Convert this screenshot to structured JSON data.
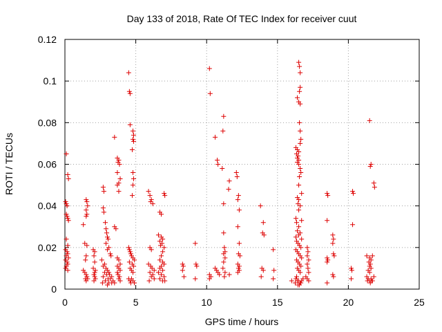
{
  "chart_data": {
    "type": "scatter",
    "title": "Day 133 of 2018, Rate Of TEC Index for receiver cuut",
    "xlabel": "GPS time / hours",
    "ylabel": "ROTI / TECUs",
    "xlim": [
      0,
      25
    ],
    "ylim": [
      0,
      0.12
    ],
    "x_ticks": [
      0,
      5,
      10,
      15,
      20,
      25
    ],
    "x_tick_labels": [
      "0",
      "5",
      "10",
      "15",
      "20",
      "25"
    ],
    "y_ticks": [
      0,
      0.02,
      0.04,
      0.06,
      0.08,
      0.1,
      0.12
    ],
    "y_tick_labels": [
      "0",
      "0.02",
      "0.04",
      "0.06",
      "0.08",
      "0.1",
      "0.12"
    ],
    "grid": true,
    "marker": "+",
    "color": "#dd0000",
    "points": [
      [
        0.1,
        0.065
      ],
      [
        0.2,
        0.055
      ],
      [
        0.25,
        0.053
      ],
      [
        0.05,
        0.042
      ],
      [
        0.1,
        0.041
      ],
      [
        0.15,
        0.04
      ],
      [
        0.1,
        0.036
      ],
      [
        0.15,
        0.035
      ],
      [
        0.2,
        0.034
      ],
      [
        0.25,
        0.033
      ],
      [
        0.1,
        0.024
      ],
      [
        0.2,
        0.021
      ],
      [
        0.05,
        0.019
      ],
      [
        0.15,
        0.018
      ],
      [
        0.2,
        0.017
      ],
      [
        0.1,
        0.016
      ],
      [
        0.25,
        0.015
      ],
      [
        0.05,
        0.014
      ],
      [
        0.15,
        0.013
      ],
      [
        0.2,
        0.012
      ],
      [
        0.1,
        0.011
      ],
      [
        0.05,
        0.01
      ],
      [
        0.2,
        0.009
      ],
      [
        1.3,
        0.031
      ],
      [
        1.5,
        0.043
      ],
      [
        1.55,
        0.042
      ],
      [
        1.6,
        0.04
      ],
      [
        1.5,
        0.038
      ],
      [
        1.55,
        0.036
      ],
      [
        1.5,
        0.035
      ],
      [
        1.4,
        0.022
      ],
      [
        1.55,
        0.021
      ],
      [
        1.5,
        0.016
      ],
      [
        1.45,
        0.014
      ],
      [
        1.3,
        0.009
      ],
      [
        1.4,
        0.008
      ],
      [
        1.5,
        0.007
      ],
      [
        1.55,
        0.006
      ],
      [
        1.45,
        0.005
      ],
      [
        1.6,
        0.005
      ],
      [
        1.5,
        0.004
      ],
      [
        2.0,
        0.019
      ],
      [
        2.1,
        0.018
      ],
      [
        2.05,
        0.016
      ],
      [
        2.1,
        0.013
      ],
      [
        2.0,
        0.01
      ],
      [
        2.15,
        0.009
      ],
      [
        2.1,
        0.008
      ],
      [
        2.05,
        0.007
      ],
      [
        2.1,
        0.006
      ],
      [
        2.15,
        0.005
      ],
      [
        2.05,
        0.004
      ],
      [
        2.7,
        0.049
      ],
      [
        2.75,
        0.047
      ],
      [
        2.7,
        0.039
      ],
      [
        2.75,
        0.037
      ],
      [
        2.85,
        0.032
      ],
      [
        2.9,
        0.029
      ],
      [
        2.95,
        0.027
      ],
      [
        3.0,
        0.025
      ],
      [
        3.05,
        0.024
      ],
      [
        2.9,
        0.022
      ],
      [
        3.1,
        0.02
      ],
      [
        3.0,
        0.019
      ],
      [
        3.2,
        0.017
      ],
      [
        3.25,
        0.016
      ],
      [
        2.6,
        0.014
      ],
      [
        2.8,
        0.012
      ],
      [
        2.7,
        0.011
      ],
      [
        2.9,
        0.01
      ],
      [
        3.0,
        0.009
      ],
      [
        3.1,
        0.008
      ],
      [
        2.8,
        0.008
      ],
      [
        2.95,
        0.007
      ],
      [
        3.15,
        0.007
      ],
      [
        3.3,
        0.006
      ],
      [
        2.7,
        0.006
      ],
      [
        3.05,
        0.005
      ],
      [
        3.2,
        0.005
      ],
      [
        3.4,
        0.004
      ],
      [
        2.85,
        0.004
      ],
      [
        3.1,
        0.003
      ],
      [
        3.3,
        0.003
      ],
      [
        3.5,
        0.003
      ],
      [
        2.65,
        0.003
      ],
      [
        3.0,
        0.002
      ],
      [
        3.5,
        0.073
      ],
      [
        3.7,
        0.063
      ],
      [
        3.8,
        0.062
      ],
      [
        3.75,
        0.061
      ],
      [
        3.85,
        0.06
      ],
      [
        3.7,
        0.056
      ],
      [
        3.9,
        0.053
      ],
      [
        3.8,
        0.051
      ],
      [
        3.7,
        0.05
      ],
      [
        3.8,
        0.047
      ],
      [
        3.5,
        0.03
      ],
      [
        3.6,
        0.029
      ],
      [
        3.7,
        0.015
      ],
      [
        3.8,
        0.014
      ],
      [
        3.9,
        0.012
      ],
      [
        3.7,
        0.011
      ],
      [
        3.8,
        0.01
      ],
      [
        3.9,
        0.009
      ],
      [
        3.7,
        0.008
      ],
      [
        3.75,
        0.007
      ],
      [
        3.85,
        0.006
      ],
      [
        3.8,
        0.005
      ],
      [
        3.9,
        0.004
      ],
      [
        4.5,
        0.104
      ],
      [
        4.55,
        0.095
      ],
      [
        4.6,
        0.094
      ],
      [
        4.6,
        0.079
      ],
      [
        4.8,
        0.076
      ],
      [
        4.85,
        0.074
      ],
      [
        4.8,
        0.072
      ],
      [
        4.85,
        0.071
      ],
      [
        4.75,
        0.067
      ],
      [
        4.8,
        0.056
      ],
      [
        4.85,
        0.053
      ],
      [
        4.8,
        0.05
      ],
      [
        4.75,
        0.045
      ],
      [
        4.5,
        0.02
      ],
      [
        4.55,
        0.019
      ],
      [
        4.6,
        0.018
      ],
      [
        4.65,
        0.017
      ],
      [
        4.7,
        0.016
      ],
      [
        4.8,
        0.015
      ],
      [
        4.9,
        0.014
      ],
      [
        4.55,
        0.013
      ],
      [
        4.75,
        0.012
      ],
      [
        4.85,
        0.011
      ],
      [
        4.6,
        0.01
      ],
      [
        4.7,
        0.009
      ],
      [
        4.8,
        0.008
      ],
      [
        4.5,
        0.005
      ],
      [
        4.6,
        0.004
      ],
      [
        4.7,
        0.005
      ],
      [
        4.8,
        0.004
      ],
      [
        4.9,
        0.003
      ],
      [
        4.65,
        0.003
      ],
      [
        5.9,
        0.047
      ],
      [
        6.0,
        0.045
      ],
      [
        6.1,
        0.043
      ],
      [
        6.05,
        0.042
      ],
      [
        6.2,
        0.041
      ],
      [
        6.0,
        0.02
      ],
      [
        6.1,
        0.019
      ],
      [
        5.9,
        0.012
      ],
      [
        6.05,
        0.011
      ],
      [
        6.15,
        0.01
      ],
      [
        6.3,
        0.009
      ],
      [
        6.0,
        0.008
      ],
      [
        6.2,
        0.007
      ],
      [
        6.1,
        0.006
      ],
      [
        5.95,
        0.004
      ],
      [
        6.3,
        0.005
      ],
      [
        6.7,
        0.037
      ],
      [
        6.8,
        0.036
      ],
      [
        7.0,
        0.046
      ],
      [
        7.05,
        0.045
      ],
      [
        6.6,
        0.026
      ],
      [
        6.8,
        0.025
      ],
      [
        6.9,
        0.024
      ],
      [
        6.7,
        0.023
      ],
      [
        6.85,
        0.022
      ],
      [
        6.75,
        0.021
      ],
      [
        7.0,
        0.02
      ],
      [
        6.9,
        0.018
      ],
      [
        6.8,
        0.016
      ],
      [
        6.7,
        0.014
      ],
      [
        6.9,
        0.013
      ],
      [
        7.0,
        0.012
      ],
      [
        6.8,
        0.011
      ],
      [
        6.7,
        0.01
      ],
      [
        6.9,
        0.009
      ],
      [
        6.6,
        0.008
      ],
      [
        6.8,
        0.007
      ],
      [
        7.0,
        0.006
      ],
      [
        6.7,
        0.005
      ],
      [
        6.9,
        0.004
      ],
      [
        7.05,
        0.004
      ],
      [
        8.3,
        0.012
      ],
      [
        8.35,
        0.011
      ],
      [
        8.3,
        0.009
      ],
      [
        8.4,
        0.006
      ],
      [
        9.2,
        0.022
      ],
      [
        9.25,
        0.012
      ],
      [
        9.3,
        0.011
      ],
      [
        9.2,
        0.005
      ],
      [
        10.2,
        0.106
      ],
      [
        10.25,
        0.094
      ],
      [
        10.6,
        0.073
      ],
      [
        10.75,
        0.062
      ],
      [
        10.8,
        0.06
      ],
      [
        10.2,
        0.007
      ],
      [
        10.3,
        0.006
      ],
      [
        10.2,
        0.005
      ],
      [
        10.6,
        0.01
      ],
      [
        10.7,
        0.009
      ],
      [
        10.8,
        0.008
      ],
      [
        10.9,
        0.007
      ],
      [
        11.2,
        0.083
      ],
      [
        11.15,
        0.076
      ],
      [
        11.1,
        0.058
      ],
      [
        11.6,
        0.052
      ],
      [
        11.55,
        0.048
      ],
      [
        11.2,
        0.041
      ],
      [
        11.2,
        0.027
      ],
      [
        11.25,
        0.02
      ],
      [
        11.3,
        0.018
      ],
      [
        11.2,
        0.017
      ],
      [
        11.3,
        0.015
      ],
      [
        11.2,
        0.013
      ],
      [
        11.15,
        0.01
      ],
      [
        11.3,
        0.008
      ],
      [
        11.25,
        0.006
      ],
      [
        11.6,
        0.007
      ],
      [
        12.1,
        0.056
      ],
      [
        12.15,
        0.054
      ],
      [
        12.25,
        0.045
      ],
      [
        12.2,
        0.043
      ],
      [
        12.3,
        0.038
      ],
      [
        12.2,
        0.03
      ],
      [
        12.3,
        0.022
      ],
      [
        12.25,
        0.017
      ],
      [
        12.35,
        0.016
      ],
      [
        12.2,
        0.012
      ],
      [
        12.3,
        0.011
      ],
      [
        12.25,
        0.01
      ],
      [
        12.3,
        0.009
      ],
      [
        12.2,
        0.008
      ],
      [
        13.8,
        0.04
      ],
      [
        14.0,
        0.032
      ],
      [
        13.95,
        0.027
      ],
      [
        14.05,
        0.026
      ],
      [
        13.9,
        0.01
      ],
      [
        14.0,
        0.009
      ],
      [
        13.85,
        0.006
      ],
      [
        14.7,
        0.019
      ],
      [
        14.75,
        0.009
      ],
      [
        14.7,
        0.005
      ],
      [
        16.0,
        0.004
      ],
      [
        16.5,
        0.109
      ],
      [
        16.55,
        0.107
      ],
      [
        16.6,
        0.104
      ],
      [
        16.6,
        0.097
      ],
      [
        16.55,
        0.095
      ],
      [
        16.4,
        0.092
      ],
      [
        16.5,
        0.09
      ],
      [
        16.6,
        0.089
      ],
      [
        16.55,
        0.08
      ],
      [
        16.6,
        0.076
      ],
      [
        16.65,
        0.072
      ],
      [
        16.6,
        0.07
      ],
      [
        16.3,
        0.068
      ],
      [
        16.4,
        0.067
      ],
      [
        16.5,
        0.066
      ],
      [
        16.35,
        0.065
      ],
      [
        16.45,
        0.064
      ],
      [
        16.4,
        0.063
      ],
      [
        16.5,
        0.062
      ],
      [
        16.4,
        0.061
      ],
      [
        16.5,
        0.06
      ],
      [
        16.6,
        0.058
      ],
      [
        16.65,
        0.056
      ],
      [
        16.55,
        0.054
      ],
      [
        16.5,
        0.05
      ],
      [
        16.7,
        0.046
      ],
      [
        16.4,
        0.044
      ],
      [
        16.5,
        0.043
      ],
      [
        16.45,
        0.041
      ],
      [
        16.6,
        0.04
      ],
      [
        16.5,
        0.038
      ],
      [
        16.3,
        0.034
      ],
      [
        16.7,
        0.033
      ],
      [
        16.35,
        0.032
      ],
      [
        16.5,
        0.03
      ],
      [
        16.4,
        0.028
      ],
      [
        16.6,
        0.027
      ],
      [
        16.5,
        0.026
      ],
      [
        16.3,
        0.025
      ],
      [
        16.7,
        0.024
      ],
      [
        16.35,
        0.023
      ],
      [
        16.45,
        0.022
      ],
      [
        16.55,
        0.021
      ],
      [
        16.65,
        0.02
      ],
      [
        16.3,
        0.019
      ],
      [
        16.4,
        0.018
      ],
      [
        16.5,
        0.017
      ],
      [
        16.6,
        0.016
      ],
      [
        16.7,
        0.015
      ],
      [
        16.35,
        0.014
      ],
      [
        16.45,
        0.013
      ],
      [
        16.55,
        0.012
      ],
      [
        16.65,
        0.011
      ],
      [
        16.4,
        0.01
      ],
      [
        16.5,
        0.009
      ],
      [
        16.6,
        0.008
      ],
      [
        16.35,
        0.006
      ],
      [
        16.3,
        0.005
      ],
      [
        16.4,
        0.004
      ],
      [
        16.5,
        0.004
      ],
      [
        16.6,
        0.003
      ],
      [
        16.7,
        0.004
      ],
      [
        16.45,
        0.002
      ],
      [
        16.55,
        0.002
      ],
      [
        16.65,
        0.003
      ],
      [
        16.25,
        0.003
      ],
      [
        16.8,
        0.005
      ],
      [
        17.1,
        0.02
      ],
      [
        17.15,
        0.018
      ],
      [
        17.1,
        0.016
      ],
      [
        17.2,
        0.014
      ],
      [
        17.1,
        0.012
      ],
      [
        17.15,
        0.01
      ],
      [
        17.2,
        0.008
      ],
      [
        17.0,
        0.006
      ],
      [
        17.1,
        0.005
      ],
      [
        17.2,
        0.004
      ],
      [
        18.5,
        0.046
      ],
      [
        18.55,
        0.045
      ],
      [
        18.5,
        0.033
      ],
      [
        18.5,
        0.015
      ],
      [
        18.55,
        0.014
      ],
      [
        18.5,
        0.013
      ],
      [
        18.5,
        0.003
      ],
      [
        18.9,
        0.026
      ],
      [
        18.95,
        0.024
      ],
      [
        18.9,
        0.022
      ],
      [
        18.95,
        0.017
      ],
      [
        19.0,
        0.016
      ],
      [
        18.9,
        0.007
      ],
      [
        18.95,
        0.006
      ],
      [
        20.3,
        0.047
      ],
      [
        20.35,
        0.046
      ],
      [
        20.3,
        0.031
      ],
      [
        20.2,
        0.01
      ],
      [
        20.25,
        0.009
      ],
      [
        20.2,
        0.005
      ],
      [
        21.5,
        0.081
      ],
      [
        21.6,
        0.06
      ],
      [
        21.55,
        0.059
      ],
      [
        21.8,
        0.051
      ],
      [
        21.85,
        0.049
      ],
      [
        21.3,
        0.016
      ],
      [
        21.5,
        0.015
      ],
      [
        21.6,
        0.014
      ],
      [
        21.45,
        0.013
      ],
      [
        21.7,
        0.016
      ],
      [
        21.55,
        0.012
      ],
      [
        21.5,
        0.011
      ],
      [
        21.6,
        0.01
      ],
      [
        21.4,
        0.009
      ],
      [
        21.5,
        0.008
      ],
      [
        21.3,
        0.006
      ],
      [
        21.4,
        0.005
      ],
      [
        21.5,
        0.004
      ],
      [
        21.6,
        0.005
      ],
      [
        21.7,
        0.004
      ],
      [
        21.8,
        0.006
      ],
      [
        21.55,
        0.003
      ],
      [
        21.65,
        0.004
      ],
      [
        21.35,
        0.004
      ]
    ]
  }
}
